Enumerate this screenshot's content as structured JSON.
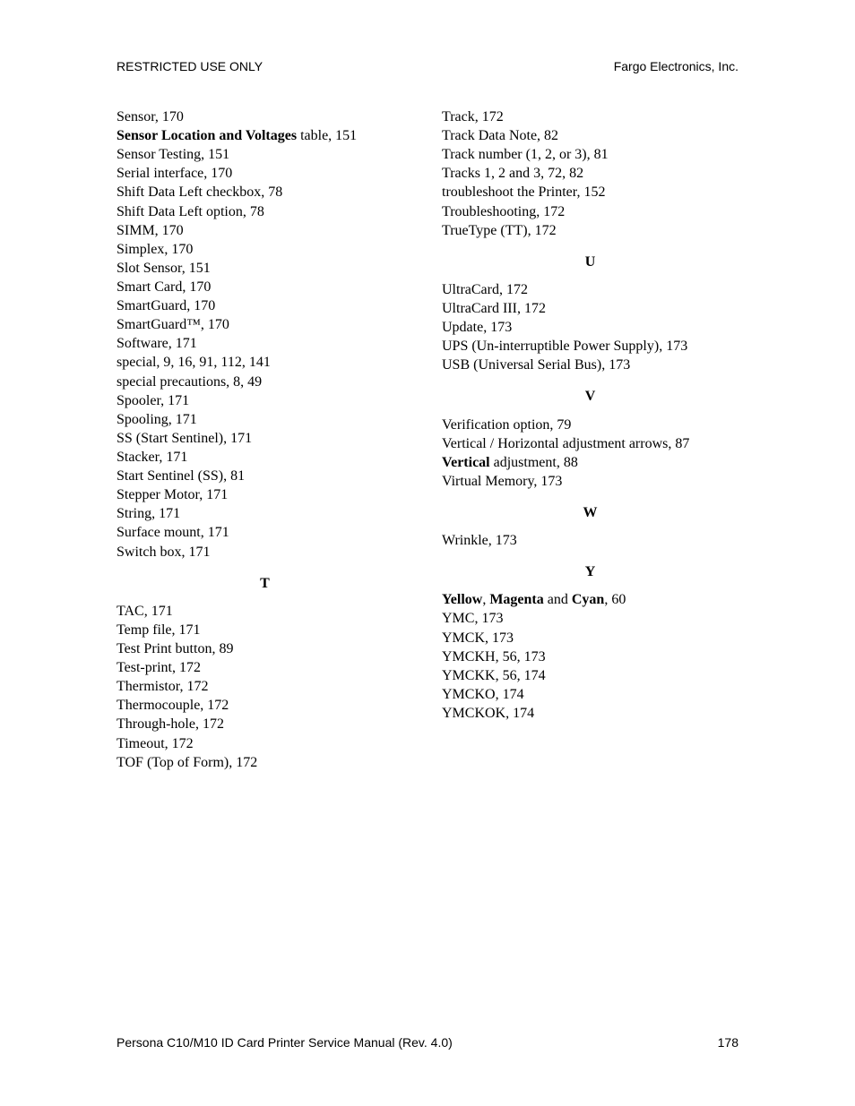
{
  "header": {
    "left": "RESTRICTED USE ONLY",
    "right": "Fargo Electronics, Inc."
  },
  "footer": {
    "left": "Persona C10/M10 ID Card Printer Service Manual (Rev. 4.0)",
    "page": "178"
  },
  "left_col": {
    "s_entries": [
      [
        {
          "t": "Sensor, 170"
        }
      ],
      [
        {
          "t": "Sensor Location and Voltages",
          "b": true
        },
        {
          "t": " table, 151"
        }
      ],
      [
        {
          "t": "Sensor Testing, 151"
        }
      ],
      [
        {
          "t": "Serial interface, 170"
        }
      ],
      [
        {
          "t": "Shift Data Left checkbox, 78"
        }
      ],
      [
        {
          "t": "Shift Data Left option, 78"
        }
      ],
      [
        {
          "t": "SIMM, 170"
        }
      ],
      [
        {
          "t": "Simplex, 170"
        }
      ],
      [
        {
          "t": "Slot Sensor, 151"
        }
      ],
      [
        {
          "t": "Smart Card, 170"
        }
      ],
      [
        {
          "t": "SmartGuard, 170"
        }
      ],
      [
        {
          "t": "SmartGuard™, 170"
        }
      ],
      [
        {
          "t": "Software, 171"
        }
      ],
      [
        {
          "t": "special, 9, 16, 91, 112, 141"
        }
      ],
      [
        {
          "t": "special precautions, 8, 49"
        }
      ],
      [
        {
          "t": "Spooler, 171"
        }
      ],
      [
        {
          "t": "Spooling, 171"
        }
      ],
      [
        {
          "t": "SS (Start Sentinel), 171"
        }
      ],
      [
        {
          "t": "Stacker, 171"
        }
      ],
      [
        {
          "t": "Start Sentinel (SS), 81"
        }
      ],
      [
        {
          "t": "Stepper Motor, 171"
        }
      ],
      [
        {
          "t": "String, 171"
        }
      ],
      [
        {
          "t": "Surface mount, 171"
        }
      ],
      [
        {
          "t": "Switch box, 171"
        }
      ]
    ],
    "t_head": "T",
    "t_entries": [
      [
        {
          "t": "TAC, 171"
        }
      ],
      [
        {
          "t": "Temp file, 171"
        }
      ],
      [
        {
          "t": "Test Print button, 89"
        }
      ],
      [
        {
          "t": "Test-print, 172"
        }
      ],
      [
        {
          "t": "Thermistor, 172"
        }
      ],
      [
        {
          "t": "Thermocouple, 172"
        }
      ],
      [
        {
          "t": "Through-hole, 172"
        }
      ],
      [
        {
          "t": "Timeout, 172"
        }
      ],
      [
        {
          "t": "TOF (Top of Form), 172"
        }
      ]
    ]
  },
  "right_col": {
    "t_cont": [
      [
        {
          "t": "Track, 172"
        }
      ],
      [
        {
          "t": "Track Data Note, 82"
        }
      ],
      [
        {
          "t": "Track number (1, 2, or 3), 81"
        }
      ],
      [
        {
          "t": "Tracks 1, 2 and 3, 72, 82"
        }
      ],
      [
        {
          "t": "troubleshoot the Printer, 152"
        }
      ],
      [
        {
          "t": "Troubleshooting, 172"
        }
      ],
      [
        {
          "t": "TrueType (TT), 172"
        }
      ]
    ],
    "u_head": "U",
    "u_entries": [
      [
        {
          "t": "UltraCard, 172"
        }
      ],
      [
        {
          "t": "UltraCard III, 172"
        }
      ],
      [
        {
          "t": "Update, 173"
        }
      ],
      [
        {
          "t": "UPS (Un-interruptible Power Supply), 173"
        }
      ],
      [
        {
          "t": "USB (Universal Serial Bus), 173"
        }
      ]
    ],
    "v_head": "V",
    "v_entries": [
      [
        {
          "t": "Verification option, 79"
        }
      ],
      [
        {
          "t": "Vertical / Horizontal adjustment arrows, 87"
        }
      ],
      [
        {
          "t": "Vertical",
          "b": true
        },
        {
          "t": " adjustment, 88"
        }
      ],
      [
        {
          "t": "Virtual Memory, 173"
        }
      ]
    ],
    "w_head": "W",
    "w_entries": [
      [
        {
          "t": "Wrinkle, 173"
        }
      ]
    ],
    "y_head": "Y",
    "y_entries": [
      [
        {
          "t": "Yellow",
          "b": true
        },
        {
          "t": ", "
        },
        {
          "t": "Magenta",
          "b": true
        },
        {
          "t": " and "
        },
        {
          "t": "Cyan",
          "b": true
        },
        {
          "t": ", 60"
        }
      ],
      [
        {
          "t": "YMC, 173"
        }
      ],
      [
        {
          "t": "YMCK, 173"
        }
      ],
      [
        {
          "t": "YMCKH, 56, 173"
        }
      ],
      [
        {
          "t": "YMCKK, 56, 174"
        }
      ],
      [
        {
          "t": "YMCKO, 174"
        }
      ],
      [
        {
          "t": "YMCKOK, 174"
        }
      ]
    ]
  }
}
